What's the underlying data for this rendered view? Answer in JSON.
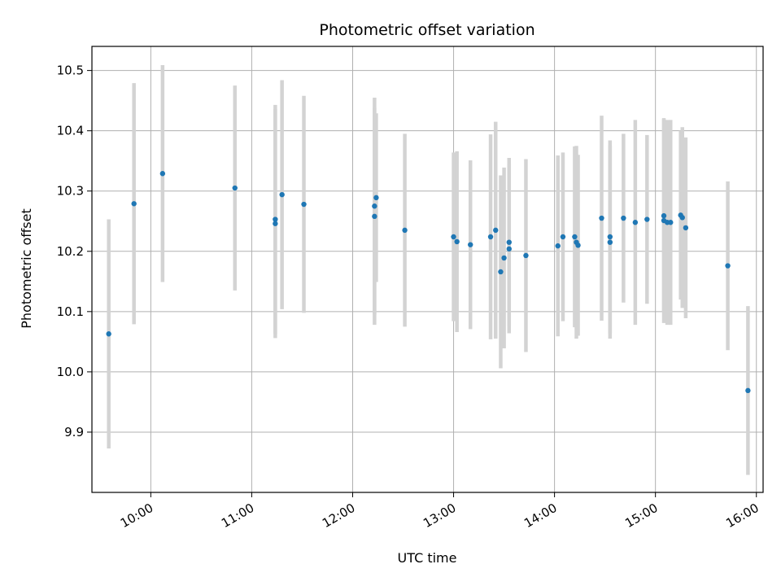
{
  "chart_data": {
    "type": "scatter",
    "title": "Photometric offset variation",
    "xlabel": "UTC time",
    "ylabel": "Photometric offset",
    "grid": true,
    "xlim": [
      "09:25",
      "16:04"
    ],
    "ylim": [
      9.8,
      10.54
    ],
    "x_ticks": [
      "10:00",
      "11:00",
      "12:00",
      "13:00",
      "14:00",
      "15:00",
      "16:00"
    ],
    "y_ticks": [
      "9.9",
      "10.0",
      "10.1",
      "10.2",
      "10.3",
      "10.4",
      "10.5"
    ],
    "colors": {
      "point": "#1f77b4",
      "errorbar": "#d3d3d3",
      "grid": "#b0b0b0"
    },
    "series": [
      {
        "x": [
          "09:35",
          "09:50",
          "10:07",
          "10:50",
          "11:14",
          "11:14",
          "11:18",
          "11:31",
          "12:13",
          "12:13",
          "12:14",
          "12:31",
          "13:00",
          "13:02",
          "13:10",
          "13:22",
          "13:25",
          "13:28",
          "13:30",
          "13:33",
          "13:33",
          "13:43",
          "14:02",
          "14:05",
          "14:12",
          "14:13",
          "14:14",
          "14:28",
          "14:33",
          "14:33",
          "14:41",
          "14:48",
          "14:55",
          "15:05",
          "15:05",
          "15:07",
          "15:09",
          "15:15",
          "15:16",
          "15:18",
          "15:43",
          "15:55"
        ],
        "y": [
          10.063,
          10.279,
          10.329,
          10.305,
          10.246,
          10.253,
          10.294,
          10.278,
          10.258,
          10.275,
          10.289,
          10.235,
          10.224,
          10.216,
          10.211,
          10.224,
          10.235,
          10.166,
          10.189,
          10.215,
          10.204,
          10.193,
          10.209,
          10.224,
          10.224,
          10.215,
          10.21,
          10.255,
          10.215,
          10.224,
          10.255,
          10.248,
          10.253,
          10.251,
          10.259,
          10.248,
          10.248,
          10.26,
          10.256,
          10.239,
          10.176,
          9.969
        ],
        "yerr": [
          0.19,
          0.2,
          0.18,
          0.17,
          0.19,
          0.19,
          0.19,
          0.18,
          0.18,
          0.18,
          0.14,
          0.16,
          0.14,
          0.15,
          0.14,
          0.17,
          0.18,
          0.16,
          0.15,
          0.14,
          0.14,
          0.16,
          0.15,
          0.14,
          0.15,
          0.16,
          0.15,
          0.17,
          0.16,
          0.16,
          0.14,
          0.17,
          0.14,
          0.17,
          0.16,
          0.17,
          0.17,
          0.14,
          0.15,
          0.15,
          0.14,
          0.14
        ]
      }
    ]
  }
}
